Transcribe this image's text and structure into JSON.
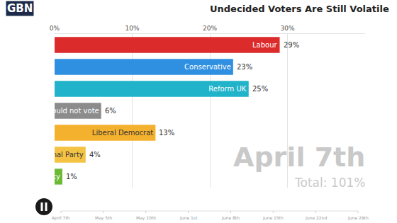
{
  "chart_data": {
    "type": "bar",
    "orientation": "horizontal",
    "title": "Undecided Voters Are Still Volatile",
    "logo": "GBN",
    "categories": [
      "Labour",
      "Conservative",
      "Reform UK",
      "Would not vote",
      "Liberal Democrat",
      "ional Party",
      "ty"
    ],
    "values": [
      29,
      23,
      25,
      6,
      13,
      4,
      1
    ],
    "value_labels": [
      "29%",
      "23%",
      "25%",
      "6%",
      "13%",
      "4%",
      "1%"
    ],
    "colors": [
      "#dc2b2b",
      "#2f8fe0",
      "#20b3c9",
      "#8c8c8c",
      "#f4b12e",
      "#f5c343",
      "#6cb936"
    ],
    "data_labels": true,
    "xlim": [
      0,
      40
    ],
    "xticks": [
      {
        "value": 0,
        "label": "0%"
      },
      {
        "value": 10,
        "label": "10%"
      },
      {
        "value": 20,
        "label": "20%"
      },
      {
        "value": 30,
        "label": "30%"
      }
    ],
    "grid": true,
    "tick_labels": "x",
    "date": "April 7th",
    "total": "Total: 101%",
    "timeline": [
      "April 7th",
      "May 5th",
      "May 20th",
      "June 1st",
      "June 8th",
      "June 15th",
      "June 22nd",
      "June 29th"
    ]
  }
}
